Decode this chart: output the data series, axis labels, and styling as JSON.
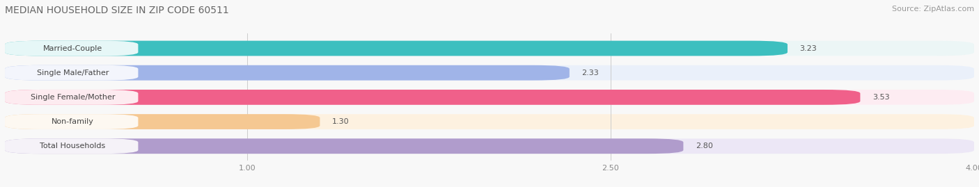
{
  "title": "MEDIAN HOUSEHOLD SIZE IN ZIP CODE 60511",
  "source": "Source: ZipAtlas.com",
  "categories": [
    "Married-Couple",
    "Single Male/Father",
    "Single Female/Mother",
    "Non-family",
    "Total Households"
  ],
  "values": [
    3.23,
    2.33,
    3.53,
    1.3,
    2.8
  ],
  "bar_colors": [
    "#3dbfbf",
    "#a0b4e8",
    "#f0608a",
    "#f5c892",
    "#b09ccc"
  ],
  "bar_bg_colors": [
    "#e0f0f0",
    "#dce6f8",
    "#fce0ea",
    "#fde8cc",
    "#e0d8f0"
  ],
  "xlim_min": 0.0,
  "xlim_max": 4.0,
  "xticks": [
    1.0,
    2.5,
    4.0
  ],
  "title_fontsize": 10,
  "source_fontsize": 8,
  "label_fontsize": 8,
  "value_fontsize": 8,
  "bar_height": 0.62,
  "fig_bg": "#f8f8f8"
}
